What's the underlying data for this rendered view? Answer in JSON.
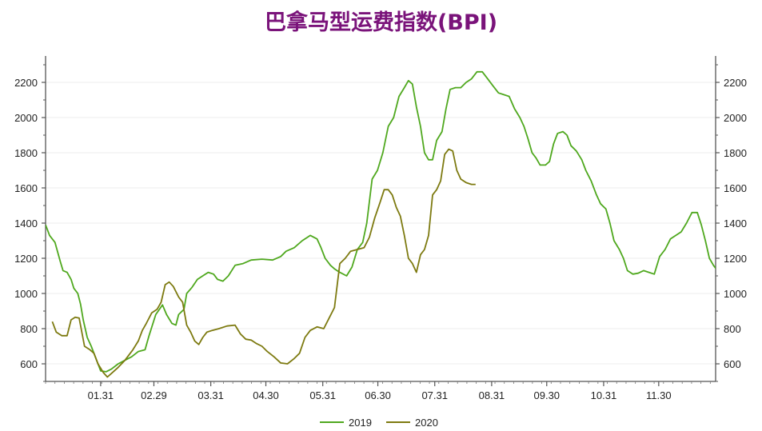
{
  "chart_data": {
    "type": "line",
    "title": "巴拿马型运费指数(BPI)",
    "xlabel": "",
    "ylabel": "",
    "ylim": [
      500,
      2350
    ],
    "y_ticks": [
      600,
      800,
      1000,
      1200,
      1400,
      1600,
      1800,
      2000,
      2200
    ],
    "x_ticks": [
      "01.31",
      "02.29",
      "03.31",
      "04.30",
      "05.31",
      "06.30",
      "07.31",
      "08.31",
      "09.30",
      "10.31",
      "11.30"
    ],
    "x_tick_days": [
      31,
      60,
      91,
      121,
      152,
      182,
      213,
      244,
      274,
      305,
      335
    ],
    "xlim_days": [
      1,
      366
    ],
    "grid": true,
    "legend": "bottom",
    "colors": {
      "2019": "#4fa81e",
      "2020": "#7d7a10"
    },
    "series": [
      {
        "name": "2019",
        "points": [
          [
            1,
            1390
          ],
          [
            4,
            1330
          ],
          [
            8,
            1290
          ],
          [
            12,
            1180
          ],
          [
            14,
            1130
          ],
          [
            17,
            1120
          ],
          [
            20,
            1080
          ],
          [
            22,
            1030
          ],
          [
            25,
            1000
          ],
          [
            27,
            940
          ],
          [
            29,
            850
          ],
          [
            32,
            750
          ],
          [
            35,
            700
          ],
          [
            38,
            640
          ],
          [
            42,
            560
          ],
          [
            46,
            555
          ],
          [
            50,
            570
          ],
          [
            55,
            600
          ],
          [
            60,
            620
          ],
          [
            65,
            640
          ],
          [
            70,
            670
          ],
          [
            75,
            680
          ],
          [
            78,
            760
          ],
          [
            83,
            880
          ],
          [
            88,
            935
          ],
          [
            91,
            880
          ],
          [
            95,
            830
          ],
          [
            98,
            820
          ],
          [
            100,
            880
          ],
          [
            104,
            910
          ],
          [
            106,
            1000
          ],
          [
            110,
            1035
          ],
          [
            114,
            1080
          ],
          [
            118,
            1100
          ],
          [
            122,
            1120
          ],
          [
            126,
            1110
          ],
          [
            129,
            1080
          ],
          [
            133,
            1070
          ],
          [
            137,
            1100
          ],
          [
            142,
            1160
          ],
          [
            148,
            1170
          ],
          [
            154,
            1190
          ],
          [
            162,
            1195
          ],
          [
            170,
            1190
          ],
          [
            176,
            1210
          ],
          [
            180,
            1240
          ],
          [
            186,
            1260
          ],
          [
            192,
            1300
          ],
          [
            198,
            1330
          ],
          [
            203,
            1310
          ],
          [
            206,
            1260
          ],
          [
            209,
            1200
          ],
          [
            213,
            1160
          ],
          [
            216,
            1140
          ],
          [
            220,
            1120
          ],
          [
            225,
            1100
          ],
          [
            229,
            1150
          ],
          [
            233,
            1250
          ],
          [
            237,
            1290
          ],
          [
            240,
            1400
          ],
          [
            244,
            1650
          ],
          [
            248,
            1700
          ],
          [
            252,
            1800
          ],
          [
            256,
            1950
          ],
          [
            260,
            2000
          ],
          [
            264,
            2120
          ],
          [
            268,
            2170
          ],
          [
            271,
            2210
          ],
          [
            274,
            2190
          ],
          [
            277,
            2060
          ],
          [
            280,
            1950
          ],
          [
            283,
            1800
          ],
          [
            286,
            1760
          ],
          [
            289,
            1760
          ],
          [
            292,
            1870
          ],
          [
            296,
            1920
          ],
          [
            299,
            2050
          ],
          [
            302,
            2160
          ],
          [
            306,
            2170
          ],
          [
            310,
            2170
          ],
          [
            314,
            2200
          ],
          [
            318,
            2220
          ],
          [
            322,
            2260
          ],
          [
            326,
            2260
          ],
          [
            330,
            2220
          ],
          [
            334,
            2180
          ],
          [
            338,
            2140
          ],
          [
            342,
            2130
          ],
          [
            346,
            2120
          ],
          [
            350,
            2050
          ],
          [
            354,
            2000
          ],
          [
            357,
            1950
          ],
          [
            360,
            1880
          ],
          [
            363,
            1800
          ],
          [
            366,
            1770
          ],
          [
            369,
            1730
          ],
          [
            373,
            1730
          ],
          [
            376,
            1750
          ],
          [
            379,
            1850
          ],
          [
            382,
            1910
          ],
          [
            386,
            1920
          ],
          [
            389,
            1900
          ],
          [
            392,
            1840
          ],
          [
            396,
            1810
          ],
          [
            400,
            1760
          ],
          [
            403,
            1700
          ],
          [
            407,
            1640
          ],
          [
            411,
            1560
          ],
          [
            414,
            1510
          ],
          [
            418,
            1480
          ],
          [
            421,
            1400
          ],
          [
            424,
            1300
          ],
          [
            428,
            1250
          ],
          [
            431,
            1200
          ],
          [
            434,
            1130
          ],
          [
            438,
            1110
          ],
          [
            442,
            1115
          ],
          [
            446,
            1130
          ],
          [
            450,
            1120
          ],
          [
            454,
            1110
          ],
          [
            458,
            1210
          ],
          [
            462,
            1250
          ],
          [
            466,
            1310
          ],
          [
            470,
            1330
          ],
          [
            474,
            1350
          ],
          [
            478,
            1400
          ],
          [
            482,
            1460
          ],
          [
            486,
            1460
          ],
          [
            489,
            1390
          ],
          [
            492,
            1300
          ],
          [
            495,
            1200
          ],
          [
            498,
            1160
          ],
          [
            500,
            1140
          ]
        ]
      },
      {
        "name": "2020",
        "points": [
          [
            6,
            840
          ],
          [
            9,
            780
          ],
          [
            13,
            760
          ],
          [
            17,
            760
          ],
          [
            20,
            850
          ],
          [
            23,
            865
          ],
          [
            26,
            860
          ],
          [
            30,
            700
          ],
          [
            34,
            680
          ],
          [
            37,
            660
          ],
          [
            40,
            600
          ],
          [
            44,
            550
          ],
          [
            47,
            525
          ],
          [
            50,
            545
          ],
          [
            55,
            580
          ],
          [
            60,
            620
          ],
          [
            66,
            680
          ],
          [
            70,
            730
          ],
          [
            73,
            790
          ],
          [
            76,
            830
          ],
          [
            80,
            890
          ],
          [
            84,
            910
          ],
          [
            87,
            950
          ],
          [
            90,
            1050
          ],
          [
            93,
            1065
          ],
          [
            96,
            1040
          ],
          [
            100,
            980
          ],
          [
            103,
            950
          ],
          [
            106,
            820
          ],
          [
            109,
            780
          ],
          [
            112,
            730
          ],
          [
            115,
            710
          ],
          [
            118,
            750
          ],
          [
            121,
            780
          ],
          [
            125,
            790
          ],
          [
            130,
            800
          ],
          [
            136,
            815
          ],
          [
            142,
            820
          ],
          [
            146,
            770
          ],
          [
            150,
            740
          ],
          [
            154,
            735
          ],
          [
            158,
            715
          ],
          [
            162,
            700
          ],
          [
            166,
            670
          ],
          [
            171,
            640
          ],
          [
            176,
            605
          ],
          [
            181,
            600
          ],
          [
            186,
            630
          ],
          [
            190,
            660
          ],
          [
            194,
            750
          ],
          [
            198,
            790
          ],
          [
            203,
            810
          ],
          [
            208,
            800
          ],
          [
            212,
            860
          ],
          [
            216,
            920
          ],
          [
            220,
            1170
          ],
          [
            224,
            1200
          ],
          [
            228,
            1240
          ],
          [
            233,
            1250
          ],
          [
            238,
            1260
          ],
          [
            242,
            1320
          ],
          [
            246,
            1430
          ],
          [
            250,
            1520
          ],
          [
            253,
            1590
          ],
          [
            256,
            1590
          ],
          [
            259,
            1560
          ],
          [
            262,
            1490
          ],
          [
            265,
            1440
          ],
          [
            268,
            1330
          ],
          [
            271,
            1200
          ],
          [
            274,
            1170
          ],
          [
            277,
            1120
          ],
          [
            280,
            1220
          ],
          [
            283,
            1250
          ],
          [
            286,
            1330
          ],
          [
            289,
            1560
          ],
          [
            292,
            1590
          ],
          [
            295,
            1640
          ],
          [
            298,
            1790
          ],
          [
            301,
            1820
          ],
          [
            304,
            1810
          ],
          [
            307,
            1700
          ],
          [
            310,
            1650
          ],
          [
            314,
            1630
          ],
          [
            318,
            1620
          ],
          [
            321,
            1620
          ]
        ]
      }
    ]
  }
}
